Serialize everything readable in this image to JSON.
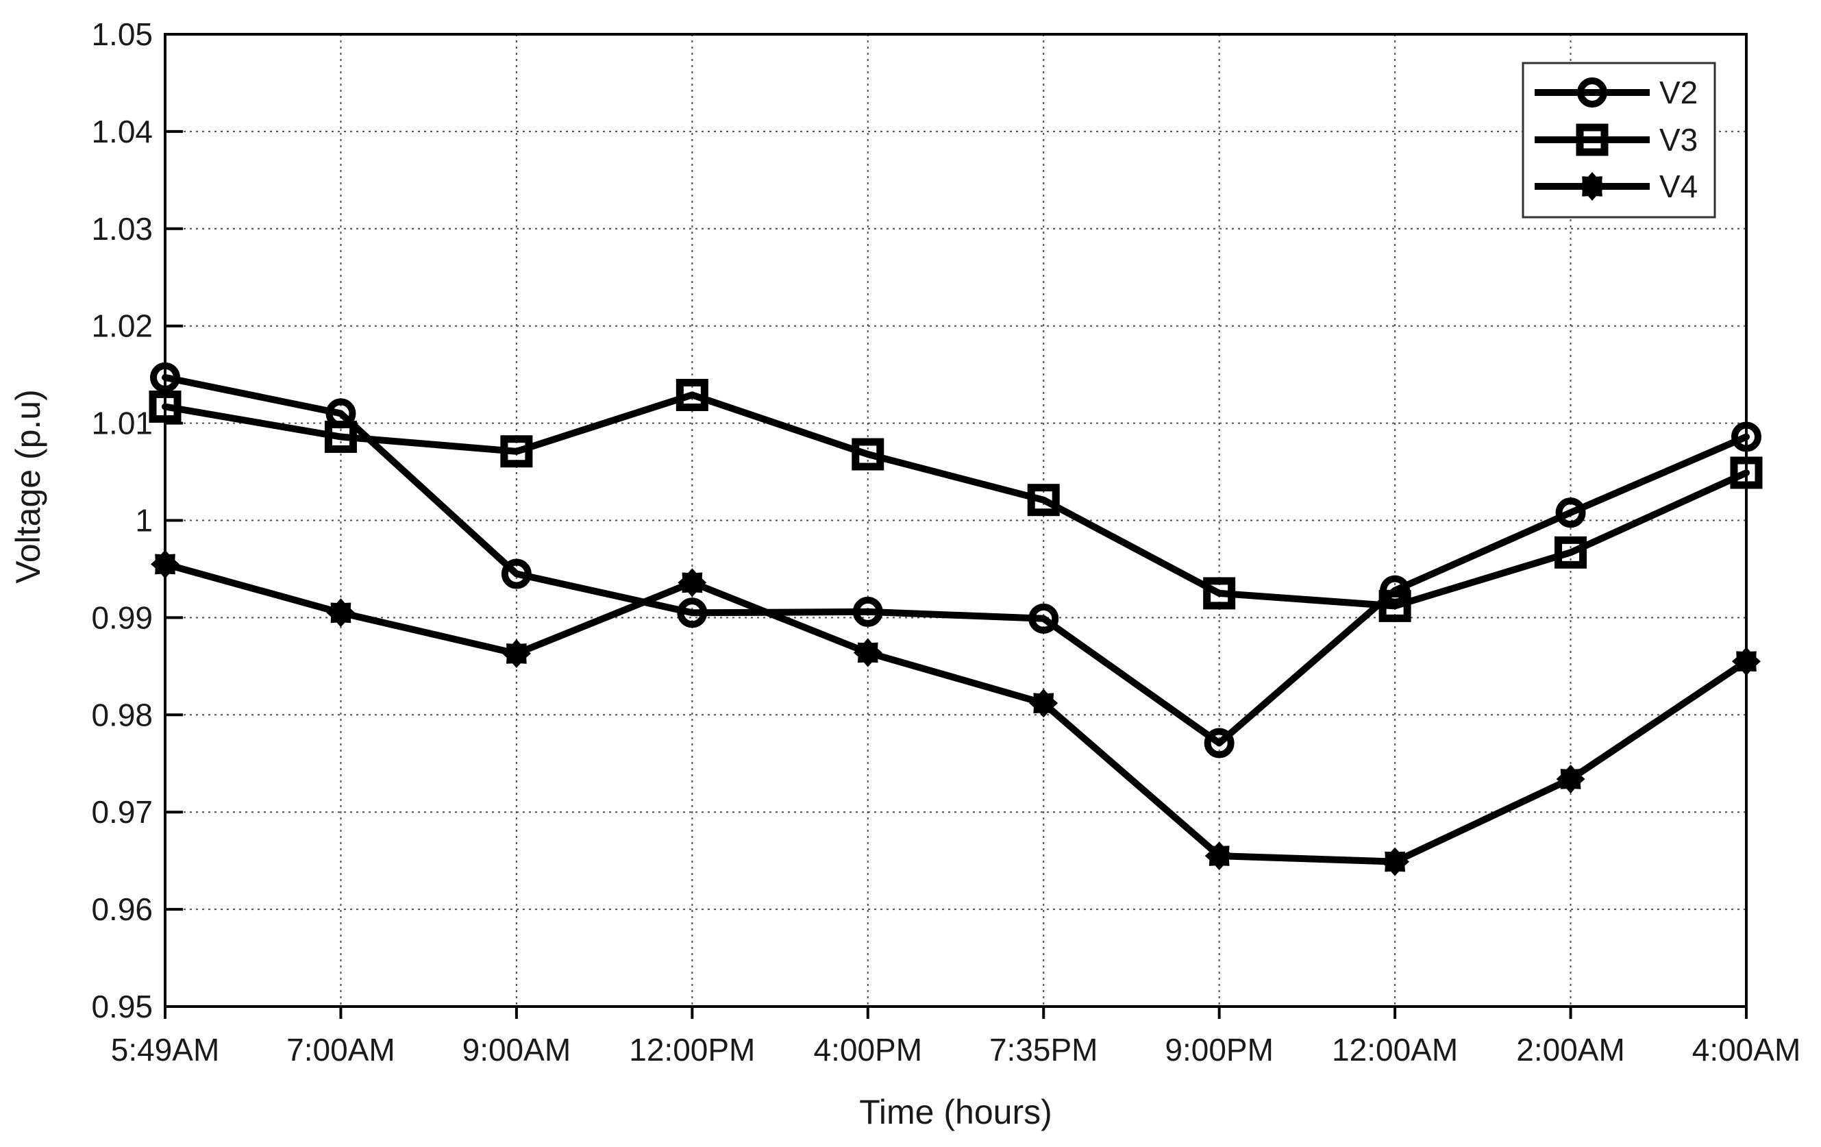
{
  "chart_data": {
    "type": "line",
    "title": "",
    "xlabel": "Time (hours)",
    "ylabel": "Voltage (p.u)",
    "categories": [
      "5:49AM",
      "7:00AM",
      "9:00AM",
      "12:00PM",
      "4:00PM",
      "7:35PM",
      "9:00PM",
      "12:00AM",
      "2:00AM",
      "4:00AM"
    ],
    "ylim": [
      0.95,
      1.05
    ],
    "ytick_values": [
      1.05,
      1.04,
      1.03,
      1.02,
      1.01,
      1.0,
      0.99,
      0.98,
      0.97,
      0.96,
      0.95
    ],
    "ytick_labels": [
      "1.05",
      "1.04",
      "1.03",
      "1.02",
      "1.01",
      "1",
      "0.99",
      "0.98",
      "0.97",
      "0.96",
      "0.95"
    ],
    "grid": true,
    "grid_style": "dotted",
    "legend_position": "top-right",
    "line_color": "#000000",
    "series": [
      {
        "name": "V2",
        "marker": "open-circle",
        "values": [
          1.0147,
          1.011,
          0.9945,
          0.9905,
          0.9906,
          0.9899,
          0.9771,
          0.9928,
          1.0008,
          1.0086
        ]
      },
      {
        "name": "V3",
        "marker": "open-square",
        "values": [
          1.0117,
          1.0086,
          1.0071,
          1.0129,
          1.0068,
          1.0021,
          0.9925,
          0.9912,
          0.9967,
          1.0049
        ]
      },
      {
        "name": "V4",
        "marker": "filled-star",
        "values": [
          0.9955,
          0.9905,
          0.9863,
          0.9936,
          0.9864,
          0.9812,
          0.9655,
          0.9649,
          0.9734,
          0.9855
        ]
      }
    ],
    "colors": {
      "axis": "#000000",
      "grid": "#4d4d4d",
      "legend_border": "#333333",
      "text": "#1a1a1a"
    }
  }
}
